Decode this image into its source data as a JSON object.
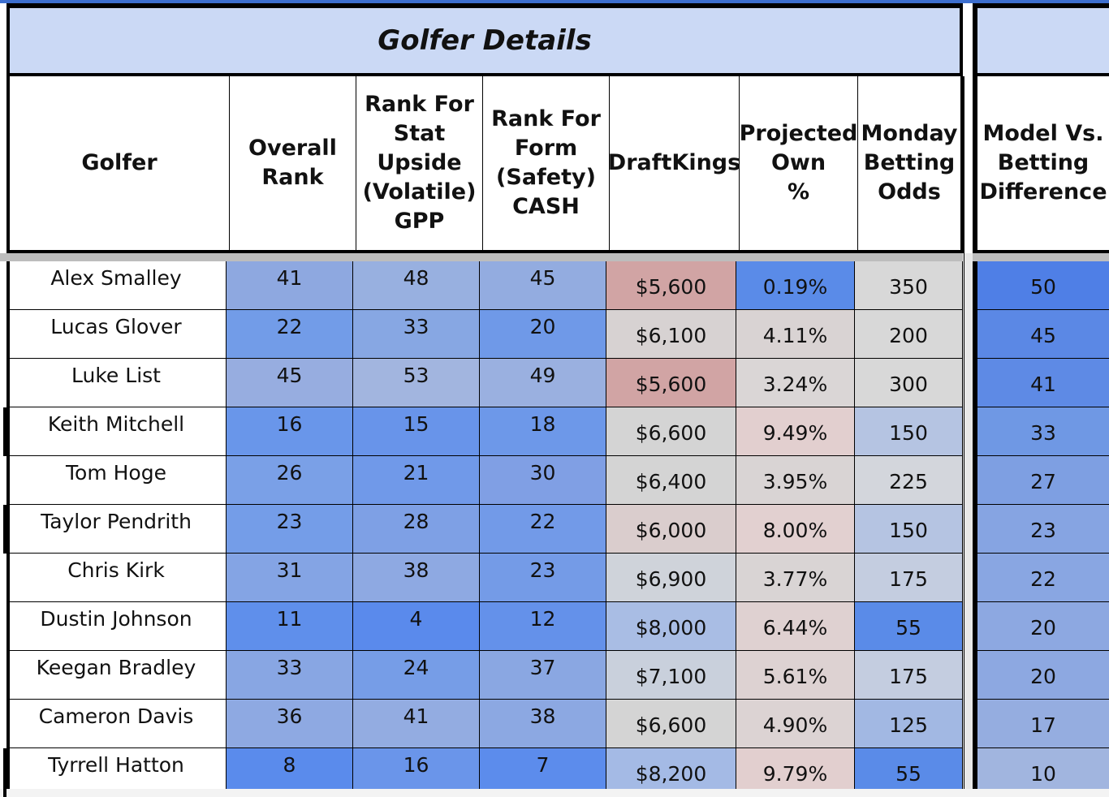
{
  "title": "Golfer Details",
  "headers": {
    "golfer": "Golfer",
    "overall_rank": "Overall\nRank",
    "stat_upside": "Rank For\nStat\nUpside\n(Volatile)\nGPP",
    "form_safety": "Rank For\nForm\n(Safety)\nCASH",
    "draftkings": "DraftKings",
    "projected_own": "Projected\nOwn\n%",
    "monday_odds": "Monday\nBetting\nOdds",
    "model_vs_betting": "Model Vs.\nBetting\nDifference"
  },
  "rows": [
    {
      "golfer": "Alex Smalley",
      "overall": "41",
      "stat": "48",
      "form": "45",
      "dk": "$5,600",
      "own": "0.19%",
      "odds": "350",
      "diff": "50",
      "colors": {
        "overall": "#8ea8e0",
        "stat": "#98b0e0",
        "form": "#93ace0",
        "dk": "#d1a4a4",
        "own": "#5a8be8",
        "odds": "#d8d8d8",
        "diff": "#4f7fe6"
      }
    },
    {
      "golfer": "Lucas Glover",
      "overall": "22",
      "stat": "33",
      "form": "20",
      "dk": "$6,100",
      "own": "4.11%",
      "odds": "200",
      "diff": "45",
      "colors": {
        "overall": "#729ce8",
        "stat": "#87a7e3",
        "form": "#6f99e8",
        "dk": "#d7d2d2",
        "own": "#d9d3d3",
        "odds": "#d8d8d8",
        "diff": "#5b88e5"
      }
    },
    {
      "golfer": "Luke List",
      "overall": "45",
      "stat": "53",
      "form": "49",
      "dk": "$5,600",
      "own": "3.24%",
      "odds": "300",
      "diff": "41",
      "colors": {
        "overall": "#97ade0",
        "stat": "#a2b5df",
        "form": "#9ab0e0",
        "dk": "#d1a4a4",
        "own": "#dad6d6",
        "odds": "#d8d8d8",
        "diff": "#5e8ae5"
      }
    },
    {
      "golfer": "Keith Mitchell",
      "overall": "16",
      "stat": "15",
      "form": "18",
      "dk": "$6,600",
      "own": "9.49%",
      "odds": "150",
      "diff": "33",
      "colors": {
        "overall": "#6996ea",
        "stat": "#6894ea",
        "form": "#6d98e9",
        "dk": "#d4d4d4",
        "own": "#e2cfcf",
        "odds": "#b5c4e2",
        "diff": "#6f98e4"
      }
    },
    {
      "golfer": "Tom Hoge",
      "overall": "26",
      "stat": "21",
      "form": "30",
      "dk": "$6,400",
      "own": "3.95%",
      "odds": "225",
      "diff": "27",
      "colors": {
        "overall": "#7aa0e7",
        "stat": "#7099e9",
        "form": "#809fe4",
        "dk": "#d4d4d4",
        "own": "#d9d4d4",
        "odds": "#d3d6dc",
        "diff": "#7e9fe2"
      }
    },
    {
      "golfer": "Taylor Pendrith",
      "overall": "23",
      "stat": "28",
      "form": "22",
      "dk": "$6,000",
      "own": "8.00%",
      "odds": "150",
      "diff": "23",
      "colors": {
        "overall": "#749de8",
        "stat": "#7ea0e5",
        "form": "#729ae8",
        "dk": "#dacdcd",
        "own": "#e2d0d0",
        "odds": "#b5c4e2",
        "diff": "#86a4e2"
      }
    },
    {
      "golfer": "Chris Kirk",
      "overall": "31",
      "stat": "38",
      "form": "23",
      "dk": "$6,900",
      "own": "3.77%",
      "odds": "175",
      "diff": "22",
      "colors": {
        "overall": "#84a4e4",
        "stat": "#8ea9e2",
        "form": "#749be7",
        "dk": "#cfd3da",
        "own": "#d9d4d4",
        "odds": "#c4cde0",
        "diff": "#89a6e2"
      }
    },
    {
      "golfer": "Dustin Johnson",
      "overall": "11",
      "stat": "4",
      "form": "12",
      "dk": "$8,000",
      "own": "6.44%",
      "odds": "55",
      "diff": "20",
      "colors": {
        "overall": "#5f8feb",
        "stat": "#5a8aec",
        "form": "#6491ea",
        "dk": "#a9bde4",
        "own": "#dfd1d1",
        "odds": "#5a8be8",
        "diff": "#8da8e1"
      }
    },
    {
      "golfer": "Keegan Bradley",
      "overall": "33",
      "stat": "24",
      "form": "37",
      "dk": "$7,100",
      "own": "5.61%",
      "odds": "175",
      "diff": "20",
      "colors": {
        "overall": "#88a6e3",
        "stat": "#769de7",
        "form": "#8aa7e2",
        "dk": "#c9d0dc",
        "own": "#ddd2d2",
        "odds": "#c4cde0",
        "diff": "#8da8e1"
      }
    },
    {
      "golfer": "Cameron Davis",
      "overall": "36",
      "stat": "41",
      "form": "38",
      "dk": "$6,600",
      "own": "4.90%",
      "odds": "125",
      "diff": "17",
      "colors": {
        "overall": "#8ea9e2",
        "stat": "#93ace1",
        "form": "#8ca8e2",
        "dk": "#d4d4d4",
        "own": "#dcd3d3",
        "odds": "#a2b8e3",
        "diff": "#95ade0"
      }
    },
    {
      "golfer": "Tyrrell Hatton",
      "overall": "8",
      "stat": "16",
      "form": "7",
      "dk": "$8,200",
      "own": "9.79%",
      "odds": "55",
      "diff": "10",
      "colors": {
        "overall": "#5a8bec",
        "stat": "#6a95ea",
        "form": "#5c8cec",
        "dk": "#a4bae5",
        "own": "#e2cfcf",
        "odds": "#5a8be8",
        "diff": "#a1b5df"
      }
    }
  ]
}
